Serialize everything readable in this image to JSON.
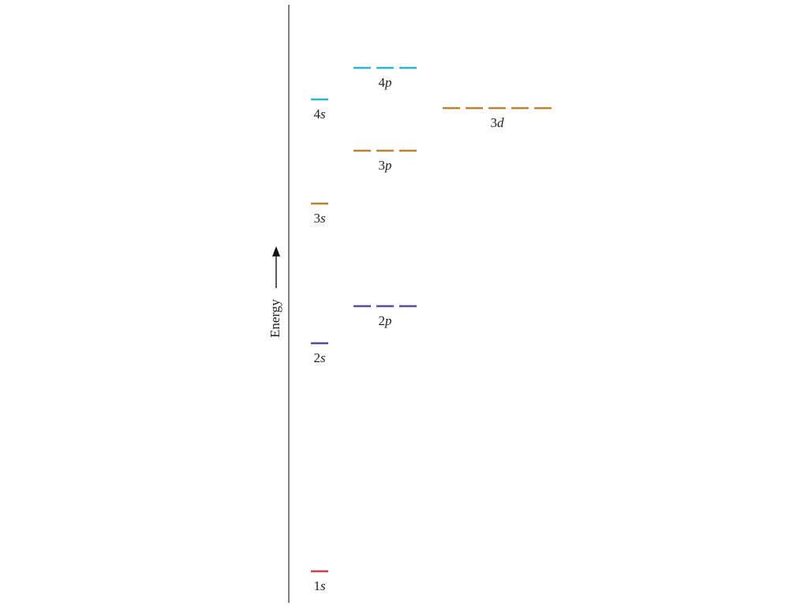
{
  "diagram": {
    "axis_label": "Energy",
    "colors": {
      "n1": "#d63a4a",
      "n2": "#5a4a9c",
      "n3": "#b88234",
      "n4": "#2fb3d6"
    },
    "levels": [
      {
        "id": "1s",
        "n": "1",
        "l": "s",
        "color_key": "n1",
        "count": 1
      },
      {
        "id": "2s",
        "n": "2",
        "l": "s",
        "color_key": "n2",
        "count": 1
      },
      {
        "id": "2p",
        "n": "2",
        "l": "p",
        "color_key": "n2",
        "count": 3
      },
      {
        "id": "3s",
        "n": "3",
        "l": "s",
        "color_key": "n3",
        "count": 1
      },
      {
        "id": "3p",
        "n": "3",
        "l": "p",
        "color_key": "n3",
        "count": 3
      },
      {
        "id": "3d",
        "n": "3",
        "l": "d",
        "color_key": "n3",
        "count": 5
      },
      {
        "id": "4s",
        "n": "4",
        "l": "s",
        "color_key": "n4",
        "count": 1
      },
      {
        "id": "4p",
        "n": "4",
        "l": "p",
        "color_key": "n4",
        "count": 3
      }
    ]
  }
}
